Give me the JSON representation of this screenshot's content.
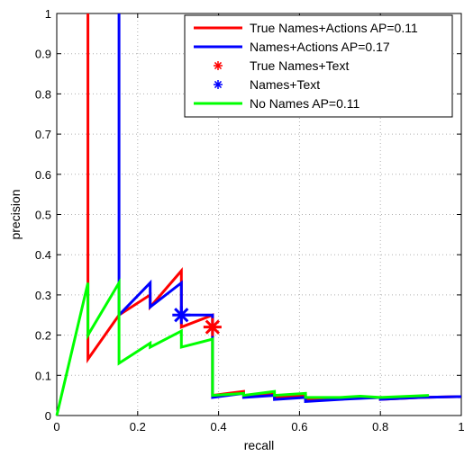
{
  "chart_data": {
    "type": "line",
    "title": "",
    "xlabel": "recall",
    "ylabel": "precision",
    "xlim": [
      0,
      1
    ],
    "ylim": [
      0,
      1
    ],
    "grid": true,
    "legend_position": "top-right",
    "xticks": [
      0,
      0.2,
      0.4,
      0.6,
      0.8,
      1
    ],
    "xtick_labels": [
      "0",
      "0.2",
      "0.4",
      "0.6",
      "0.8",
      "1"
    ],
    "yticks": [
      0,
      0.1,
      0.2,
      0.3,
      0.4,
      0.5,
      0.6,
      0.7,
      0.8,
      0.9,
      1
    ],
    "ytick_labels": [
      "0",
      "0.1",
      "0.2",
      "0.3",
      "0.4",
      "0.5",
      "0.6",
      "0.7",
      "0.8",
      "0.9",
      "1"
    ],
    "series": [
      {
        "name": "True Names+Actions AP=0.11",
        "style": "line",
        "color": "#ff0000",
        "points": [
          [
            0.077,
            0.33
          ],
          [
            0.077,
            1.0
          ],
          [
            0.077,
            0.14
          ],
          [
            0.154,
            0.25
          ],
          [
            0.231,
            0.3
          ],
          [
            0.231,
            0.27
          ],
          [
            0.308,
            0.36
          ],
          [
            0.308,
            0.22
          ],
          [
            0.385,
            0.25
          ],
          [
            0.385,
            0.05
          ],
          [
            0.462,
            0.06
          ],
          [
            0.462,
            0.05
          ],
          [
            0.538,
            0.055
          ],
          [
            0.538,
            0.045
          ],
          [
            0.615,
            0.05
          ],
          [
            0.615,
            0.04
          ],
          [
            0.7,
            0.042
          ],
          [
            0.8,
            0.045
          ],
          [
            0.8,
            0.04
          ],
          [
            0.9,
            0.045
          ],
          [
            1.0,
            0.047
          ]
        ]
      },
      {
        "name": "Names+Actions AP=0.17",
        "style": "line",
        "color": "#0000ff",
        "points": [
          [
            0.154,
            0.25
          ],
          [
            0.154,
            1.0
          ],
          [
            0.154,
            0.25
          ],
          [
            0.231,
            0.33
          ],
          [
            0.231,
            0.27
          ],
          [
            0.308,
            0.33
          ],
          [
            0.308,
            0.25
          ],
          [
            0.385,
            0.25
          ],
          [
            0.385,
            0.045
          ],
          [
            0.462,
            0.055
          ],
          [
            0.462,
            0.045
          ],
          [
            0.538,
            0.05
          ],
          [
            0.538,
            0.04
          ],
          [
            0.615,
            0.045
          ],
          [
            0.615,
            0.035
          ],
          [
            0.7,
            0.04
          ],
          [
            0.8,
            0.045
          ],
          [
            0.8,
            0.04
          ],
          [
            0.9,
            0.045
          ],
          [
            1.0,
            0.047
          ]
        ]
      },
      {
        "name": "True Names+Text",
        "style": "marker",
        "color": "#ff0000",
        "points": [
          [
            0.385,
            0.22
          ]
        ]
      },
      {
        "name": "Names+Text",
        "style": "marker",
        "color": "#0000ff",
        "points": [
          [
            0.308,
            0.25
          ]
        ]
      },
      {
        "name": "No Names AP=0.11",
        "style": "line",
        "color": "#00ff00",
        "points": [
          [
            0.0,
            0.0
          ],
          [
            0.077,
            0.33
          ],
          [
            0.077,
            0.2
          ],
          [
            0.154,
            0.33
          ],
          [
            0.154,
            0.13
          ],
          [
            0.231,
            0.18
          ],
          [
            0.231,
            0.17
          ],
          [
            0.308,
            0.21
          ],
          [
            0.308,
            0.17
          ],
          [
            0.385,
            0.19
          ],
          [
            0.385,
            0.05
          ],
          [
            0.462,
            0.055
          ],
          [
            0.462,
            0.05
          ],
          [
            0.538,
            0.06
          ],
          [
            0.538,
            0.05
          ],
          [
            0.615,
            0.055
          ],
          [
            0.615,
            0.045
          ],
          [
            0.7,
            0.045
          ],
          [
            0.75,
            0.048
          ],
          [
            0.8,
            0.045
          ],
          [
            0.92,
            0.05
          ]
        ]
      }
    ]
  }
}
